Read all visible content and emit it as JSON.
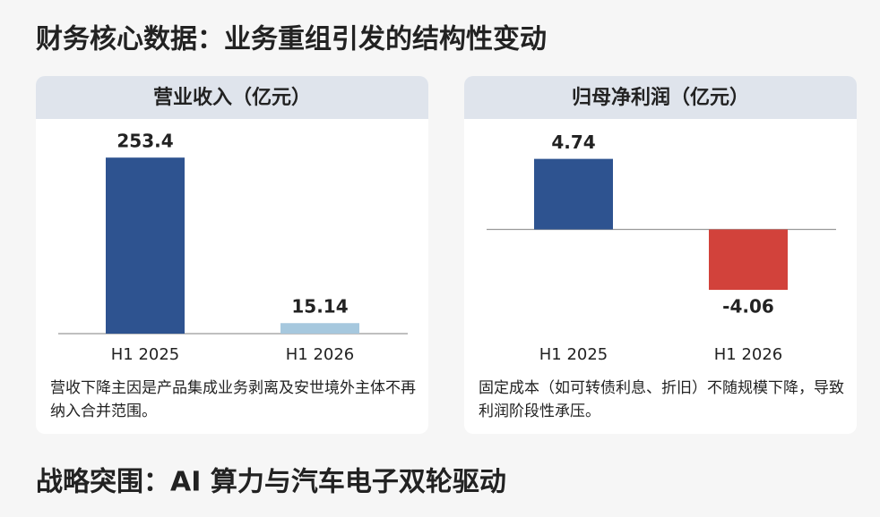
{
  "header": {
    "title": "财务核心数据：业务重组引发的结构性变动"
  },
  "chart_data": [
    {
      "type": "bar",
      "title": "营业收入（亿元）",
      "categories": [
        "H1 2025",
        "H1 2026"
      ],
      "values": [
        253.4,
        15.14
      ],
      "colors": [
        "#2e5390",
        "#a6c8de"
      ],
      "ylim": [
        0,
        300
      ],
      "note": "营收下降主因是产品集成业务剥离及安世境外主体不再纳入合并范围。"
    },
    {
      "type": "bar",
      "title": "归母净利润（亿元）",
      "categories": [
        "H1 2025",
        "H1 2026"
      ],
      "values": [
        4.74,
        -4.06
      ],
      "colors": [
        "#2e5390",
        "#d2423b"
      ],
      "ylim": [
        -7,
        7
      ],
      "note": "固定成本（如可转债利息、折旧）不随规模下降，导致利润阶段性承压。"
    }
  ],
  "footer": {
    "heading": "战略突围：AI 算力与汽车电子双轮驱动"
  }
}
